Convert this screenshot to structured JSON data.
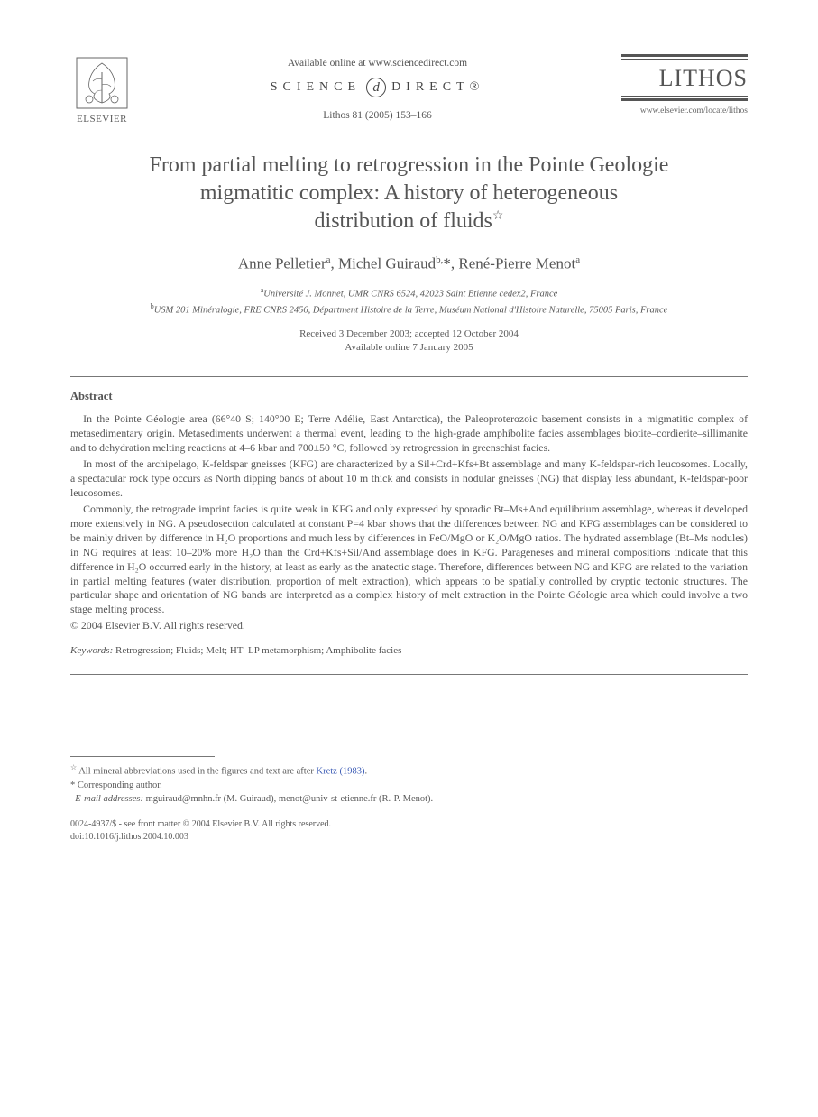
{
  "header": {
    "publisher": "ELSEVIER",
    "available_line": "Available online at www.sciencedirect.com",
    "sciencedirect_left": "SCIENCE",
    "sciencedirect_right": "DIRECT®",
    "citation": "Lithos 81 (2005) 153–166",
    "journal_name": "LITHOS",
    "journal_url": "www.elsevier.com/locate/lithos"
  },
  "title": {
    "line1": "From partial melting to retrogression in the Pointe Geologie",
    "line2": "migmatitic complex: A history of heterogeneous",
    "line3": "distribution of fluids",
    "star": "☆"
  },
  "authors_html": "Anne Pelletier<sup>a</sup>, Michel Guiraud<sup>b,</sup>*, René-Pierre Menot<sup>a</sup>",
  "affiliations": {
    "a": "Université J. Monnet, UMR CNRS 6524, 42023 Saint Etienne cedex2, France",
    "b": "USM 201 Minéralogie, FRE CNRS 2456, Départment Histoire de la Terre, Muséum National d'Histoire Naturelle, 75005 Paris, France"
  },
  "dates": {
    "received": "Received 3 December 2003; accepted 12 October 2004",
    "online": "Available online 7 January 2005"
  },
  "abstract_heading": "Abstract",
  "abstract_paragraphs": [
    "In the Pointe Géologie area (66°40 S; 140°00 E; Terre Adélie, East Antarctica), the Paleoproterozoic basement consists in a migmatitic complex of metasedimentary origin. Metasediments underwent a thermal event, leading to the high-grade amphibolite facies assemblages biotite–cordierite–sillimanite and to dehydration melting reactions at 4–6 kbar and 700±50 °C, followed by retrogression in greenschist facies.",
    "In most of the archipelago, K-feldspar gneisses (KFG) are characterized by a Sil+Crd+Kfs+Bt assemblage and many K-feldspar-rich leucosomes. Locally, a spectacular rock type occurs as North dipping bands of about 10 m thick and consists in nodular gneisses (NG) that display less abundant, K-feldspar-poor leucosomes.",
    "Commonly, the retrograde imprint facies is quite weak in KFG and only expressed by sporadic Bt–Ms±And equilibrium assemblage, whereas it developed more extensively in NG. A pseudosection calculated at constant P=4 kbar shows that the differences between NG and KFG assemblages can be considered to be mainly driven by difference in H₂O proportions and much less by differences in FeO/MgO or K₂O/MgO ratios. The hydrated assemblage (Bt–Ms nodules) in NG requires at least 10–20% more H₂O than the Crd+Kfs+Sil/And assemblage does in KFG. Parageneses and mineral compositions indicate that this difference in H₂O occurred early in the history, at least as early as the anatectic stage. Therefore, differences between NG and KFG are related to the variation in partial melting features (water distribution, proportion of melt extraction), which appears to be spatially controlled by cryptic tectonic structures. The particular shape and orientation of NG bands are interpreted as a complex history of melt extraction in the Pointe Géologie area which could involve a two stage melting process."
  ],
  "copyright": "© 2004 Elsevier B.V. All rights reserved.",
  "keywords_label": "Keywords:",
  "keywords": "Retrogression; Fluids; Melt; HT–LP metamorphism; Amphibolite facies",
  "footnotes": {
    "star_text": "All mineral abbreviations used in the figures and text are after ",
    "star_ref": "Kretz (1983)",
    "star_tail": ".",
    "corr": "Corresponding author.",
    "email_label": "E-mail addresses:",
    "emails": " mguiraud@mnhn.fr (M. Guiraud), menot@univ-st-etienne.fr (R.-P. Menot)."
  },
  "footer": {
    "line1": "0024-4937/$ - see front matter © 2004 Elsevier B.V. All rights reserved.",
    "line2": "doi:10.1016/j.lithos.2004.10.003"
  },
  "colors": {
    "text": "#545454",
    "link": "#3b5bb5",
    "rule": "#777777",
    "background": "#ffffff"
  }
}
